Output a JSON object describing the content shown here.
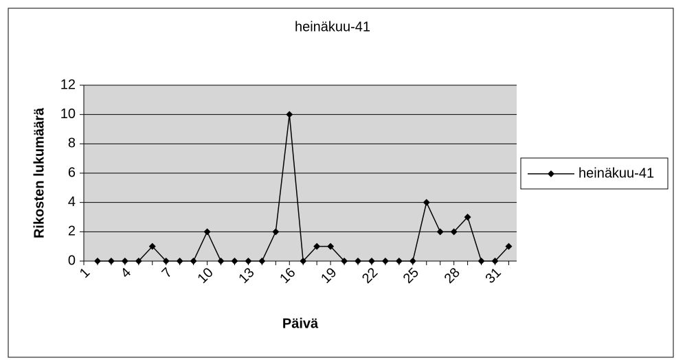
{
  "chart_data": {
    "type": "line",
    "title": "heinäkuu-41",
    "x_label": "Päivä",
    "y_label": "Rikosten lukumäärä",
    "categories": [
      "1",
      null,
      null,
      "4",
      null,
      null,
      "7",
      null,
      null,
      "10",
      null,
      null,
      "13",
      null,
      null,
      "16",
      null,
      null,
      "19",
      null,
      null,
      "22",
      null,
      null,
      "25",
      null,
      null,
      "28",
      null,
      null,
      "31",
      null
    ],
    "series": [
      {
        "name": "heinäkuu-41",
        "color": "#000000",
        "values": [
          null,
          0,
          0,
          0,
          0,
          1,
          0,
          0,
          0,
          2,
          0,
          0,
          0,
          0,
          2,
          10,
          0,
          1,
          1,
          0,
          0,
          0,
          0,
          0,
          0,
          4,
          2,
          2,
          3,
          0,
          0,
          1
        ]
      }
    ],
    "ylim": [
      0,
      12
    ],
    "yticks": [
      0,
      2,
      4,
      6,
      8,
      10,
      12
    ],
    "grid": true,
    "legend": "right"
  }
}
